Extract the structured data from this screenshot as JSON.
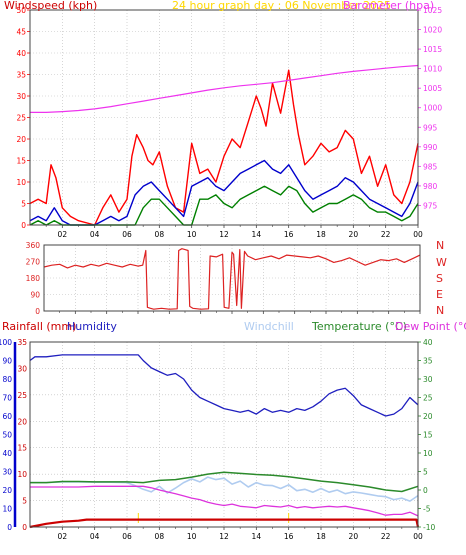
{
  "colors": {
    "wind": "#ff0000",
    "wind_avg": "#0000cc",
    "wind_min": "#008000",
    "baro": "#ee33ee",
    "title": "#ffd700",
    "direction": "#dd2222",
    "rain_label": "#cc0000",
    "rain": "#cc0000",
    "rain_axis": "#0000cc",
    "humidity": "#1f1fbf",
    "windchill": "#b0ccf0",
    "temperature": "#2b8a2b",
    "dew_point": "#dd33dd",
    "yellow_mark": "#ffd700",
    "grid": "#bbbbbb"
  },
  "chart_data": [
    {
      "type": "line",
      "title": "24 hour graph day : 06 November 2025",
      "ylabel": "Windspeed (kph)",
      "y2label": "Barometer (hpa)",
      "x_ticks": [
        "02",
        "04",
        "06",
        "08",
        "10",
        "12",
        "14",
        "16",
        "18",
        "20",
        "22",
        "00"
      ],
      "x_range": [
        0,
        24
      ],
      "ylim": [
        0,
        50
      ],
      "y_ticks": [
        0,
        5,
        10,
        15,
        20,
        25,
        30,
        35,
        40,
        45,
        50
      ],
      "y2lim": [
        970,
        1025
      ],
      "y2_ticks": [
        975,
        980,
        985,
        990,
        995,
        1000,
        1005,
        1010,
        1015,
        1020,
        1025
      ],
      "grid": true,
      "series": [
        {
          "key": "gust",
          "axis": "left",
          "x": [
            0,
            0.5,
            1,
            1.3,
            1.6,
            2,
            2.5,
            3,
            4,
            4.5,
            5,
            5.5,
            6,
            6.3,
            6.6,
            7,
            7.3,
            7.6,
            8,
            8.5,
            9,
            9.5,
            10,
            10.5,
            11,
            11.5,
            12,
            12.5,
            13,
            13.5,
            14,
            14.3,
            14.6,
            15,
            15.5,
            16,
            16.3,
            16.6,
            17,
            17.5,
            18,
            18.5,
            19,
            19.5,
            20,
            20.5,
            21,
            21.5,
            22,
            22.5,
            23,
            23.5,
            24
          ],
          "values": [
            5,
            6,
            5,
            14,
            11,
            4,
            2,
            1,
            0,
            4,
            7,
            3,
            6,
            16,
            21,
            18,
            15,
            14,
            17,
            9,
            4,
            3,
            19,
            12,
            13,
            10,
            16,
            20,
            18,
            24,
            30,
            27,
            23,
            33,
            26,
            36,
            28,
            21,
            14,
            16,
            19,
            17,
            18,
            22,
            20,
            12,
            16,
            9,
            14,
            7,
            5,
            10,
            19
          ]
        },
        {
          "key": "average",
          "axis": "left",
          "x": [
            0,
            0.5,
            1,
            1.5,
            2,
            2.5,
            3,
            4,
            4.5,
            5,
            5.5,
            6,
            6.5,
            7,
            7.5,
            8,
            8.5,
            9,
            9.5,
            10,
            10.5,
            11,
            11.5,
            12,
            12.5,
            13,
            13.5,
            14,
            14.5,
            15,
            15.5,
            16,
            16.5,
            17,
            17.5,
            18,
            18.5,
            19,
            19.5,
            20,
            20.5,
            21,
            21.5,
            22,
            22.5,
            23,
            23.5,
            24
          ],
          "values": [
            1,
            2,
            1,
            4,
            1,
            0,
            0,
            0,
            1,
            2,
            1,
            2,
            7,
            9,
            10,
            8,
            6,
            4,
            2,
            9,
            10,
            11,
            9,
            8,
            10,
            12,
            13,
            14,
            15,
            13,
            12,
            14,
            11,
            8,
            6,
            7,
            8,
            9,
            11,
            10,
            8,
            6,
            5,
            4,
            3,
            2,
            5,
            10
          ]
        },
        {
          "key": "minimum",
          "axis": "left",
          "x": [
            0,
            0.5,
            1,
            1.5,
            2,
            2.5,
            3,
            4,
            5,
            5.5,
            6,
            6.5,
            7,
            7.5,
            8,
            8.5,
            9,
            9.5,
            10,
            10.5,
            11,
            11.5,
            12,
            12.5,
            13,
            13.5,
            14,
            14.5,
            15,
            15.5,
            16,
            16.5,
            17,
            17.5,
            18,
            18.5,
            19,
            19.5,
            20,
            20.5,
            21,
            21.5,
            22,
            22.5,
            23,
            23.5,
            24
          ],
          "values": [
            0,
            1,
            0,
            1,
            0,
            0,
            0,
            0,
            0,
            0,
            0,
            0,
            4,
            6,
            6,
            4,
            2,
            0,
            0,
            6,
            6,
            7,
            5,
            4,
            6,
            7,
            8,
            9,
            8,
            7,
            9,
            8,
            5,
            3,
            4,
            5,
            5,
            6,
            7,
            6,
            4,
            3,
            3,
            2,
            1,
            2,
            5
          ]
        },
        {
          "key": "barometer",
          "axis": "right",
          "x": [
            0,
            1,
            2,
            3,
            4,
            5,
            6,
            7,
            8,
            9,
            10,
            11,
            12,
            13,
            14,
            15,
            16,
            17,
            18,
            19,
            20,
            21,
            22,
            23,
            24
          ],
          "values": [
            998.8,
            998.8,
            999,
            999.3,
            999.7,
            1000.3,
            1001,
            1001.7,
            1002.4,
            1003.1,
            1003.8,
            1004.5,
            1005.1,
            1005.6,
            1006,
            1006.4,
            1007,
            1007.6,
            1008.2,
            1008.8,
            1009.3,
            1009.7,
            1010.1,
            1010.5,
            1010.8
          ]
        }
      ]
    },
    {
      "type": "line",
      "direction_labels": [
        "N",
        "W",
        "S",
        "E",
        "N"
      ],
      "x_ticks": [
        "02",
        "04",
        "06",
        "08",
        "10",
        "12",
        "14",
        "16",
        "18",
        "20",
        "22",
        "00"
      ],
      "x_range": [
        0,
        24
      ],
      "ylim": [
        0,
        360
      ],
      "y_ticks": [
        0,
        90,
        180,
        270,
        360
      ],
      "grid": true,
      "series": [
        {
          "key": "wind_direction",
          "x": [
            0,
            0.5,
            1,
            1.5,
            2,
            2.5,
            3,
            3.5,
            4,
            4.5,
            5,
            5.5,
            6,
            6.3,
            6.5,
            6.6,
            6.8,
            7,
            7.5,
            8,
            8.5,
            8.6,
            8.8,
            9,
            9.2,
            9.3,
            9.5,
            10,
            10.5,
            10.6,
            11,
            11.4,
            11.5,
            11.8,
            12,
            12.1,
            12.3,
            12.5,
            12.6,
            12.8,
            13,
            13.5,
            14,
            14.5,
            15,
            15.5,
            16,
            16.5,
            17,
            17.5,
            18,
            18.5,
            19,
            19.5,
            20,
            20.5,
            21,
            21.5,
            22,
            22.5,
            23,
            23.5,
            24
          ],
          "values": [
            240,
            250,
            255,
            235,
            250,
            240,
            255,
            245,
            260,
            250,
            240,
            255,
            245,
            250,
            330,
            20,
            15,
            10,
            15,
            10,
            12,
            330,
            340,
            335,
            330,
            25,
            15,
            10,
            12,
            300,
            295,
            310,
            20,
            15,
            320,
            310,
            30,
            335,
            15,
            325,
            300,
            280,
            290,
            300,
            285,
            305,
            300,
            295,
            290,
            300,
            285,
            265,
            275,
            290,
            270,
            250,
            265,
            280,
            275,
            285,
            265,
            285,
            305
          ]
        }
      ]
    },
    {
      "type": "line",
      "labels": {
        "rainfall": "Rainfall (mm)",
        "humidity": "Humidity",
        "windchill": "Windchill",
        "temperature": "Temperature (°C)",
        "dew_point": "Dew Point (°C)"
      },
      "x_ticks": [
        "02",
        "04",
        "06",
        "08",
        "10",
        "12",
        "14",
        "16",
        "18",
        "20",
        "22",
        "00"
      ],
      "x_range": [
        0,
        24
      ],
      "humidity_lim": [
        0,
        100
      ],
      "humidity_ticks": [
        0,
        10,
        20,
        30,
        40,
        50,
        60,
        70,
        80,
        90,
        100
      ],
      "rain_lim": [
        0,
        35
      ],
      "rain_ticks": [
        0,
        5,
        10,
        15,
        20,
        25,
        30,
        35
      ],
      "temp_lim": [
        -10,
        40
      ],
      "temp_ticks": [
        -10,
        -5,
        0,
        5,
        10,
        15,
        20,
        25,
        30,
        35,
        40
      ],
      "grid": true,
      "series": [
        {
          "key": "humidity",
          "axis": "humidity",
          "x": [
            0,
            0.3,
            1,
            2,
            3,
            4,
            5,
            6,
            6.7,
            7,
            7.5,
            8,
            8.5,
            9,
            9.5,
            10,
            10.5,
            11,
            11.5,
            12,
            12.5,
            13,
            13.5,
            14,
            14.5,
            15,
            15.5,
            16,
            16.5,
            17,
            17.5,
            18,
            18.5,
            19,
            19.5,
            20,
            20.5,
            21,
            21.5,
            22,
            22.5,
            23,
            23.5,
            24
          ],
          "values": [
            90,
            92,
            92,
            93,
            93,
            93,
            93,
            93,
            93,
            90,
            86,
            84,
            82,
            83,
            80,
            74,
            70,
            68,
            66,
            64,
            63,
            62,
            63,
            61,
            64,
            62,
            63,
            62,
            64,
            63,
            65,
            68,
            72,
            74,
            75,
            71,
            66,
            64,
            62,
            60,
            61,
            64,
            70,
            66
          ]
        },
        {
          "key": "temperature",
          "axis": "temp",
          "x": [
            0,
            1,
            2,
            3,
            4,
            5,
            6,
            7,
            8,
            9,
            10,
            11,
            12,
            13,
            14,
            15,
            16,
            17,
            18,
            19,
            20,
            21,
            22,
            23,
            24
          ],
          "values": [
            2,
            2,
            2.3,
            2.3,
            2.2,
            2.2,
            2.2,
            2,
            2.6,
            2.8,
            3.5,
            4.3,
            4.8,
            4.5,
            4.2,
            4,
            3.6,
            3,
            2.4,
            2,
            1.4,
            0.8,
            0,
            -0.4,
            1
          ]
        },
        {
          "key": "windchill",
          "axis": "temp",
          "x": [
            0,
            1,
            2,
            3,
            4,
            5,
            6,
            6.5,
            7,
            7.5,
            8,
            8.5,
            9,
            9.5,
            10,
            10.5,
            11,
            11.5,
            12,
            12.5,
            13,
            13.5,
            14,
            14.5,
            15,
            15.5,
            16,
            16.5,
            17,
            17.5,
            18,
            18.5,
            19,
            19.5,
            20,
            20.5,
            21,
            21.5,
            22,
            22.5,
            23,
            23.5,
            24
          ],
          "values": [
            2,
            2,
            2.2,
            2.2,
            2.1,
            2.1,
            2,
            1.2,
            0.2,
            -0.5,
            1,
            -0.8,
            0.5,
            2,
            3,
            2.2,
            3.5,
            2.8,
            3.2,
            1.6,
            2.4,
            0.8,
            2,
            1.3,
            1.2,
            0.4,
            1.4,
            -0.2,
            0.2,
            -0.6,
            0.4,
            -0.6,
            0,
            -1,
            -0.5,
            -0.8,
            -1.2,
            -1.6,
            -1.8,
            -2.6,
            -2.2,
            -3,
            -1.5
          ]
        },
        {
          "key": "dew_point",
          "axis": "temp",
          "x": [
            0,
            1,
            2,
            3,
            4,
            5,
            6,
            7,
            7.5,
            8,
            8.5,
            9,
            9.5,
            10,
            10.5,
            11,
            11.5,
            12,
            12.5,
            13,
            13.5,
            14,
            14.5,
            15,
            15.5,
            16,
            16.5,
            17,
            17.5,
            18,
            18.5,
            19,
            19.5,
            20,
            20.5,
            21,
            21.5,
            22,
            22.5,
            23,
            23.5,
            24
          ],
          "values": [
            0.8,
            0.8,
            0.8,
            0.8,
            1,
            1,
            1,
            1,
            0.6,
            0,
            -0.5,
            -1,
            -1.6,
            -2.2,
            -2.6,
            -3.3,
            -3.8,
            -4.2,
            -3.8,
            -4.4,
            -4.6,
            -4.8,
            -4.2,
            -4.4,
            -4.6,
            -4.2,
            -4.8,
            -4.5,
            -4.8,
            -4.6,
            -4.4,
            -4.6,
            -4.4,
            -4.8,
            -5.2,
            -5.6,
            -6.2,
            -6.8,
            -6.6,
            -6.6,
            -6,
            -7
          ]
        },
        {
          "key": "rainfall",
          "axis": "rain",
          "x": [
            0,
            1,
            2,
            3,
            3.5,
            4,
            6.5,
            7,
            8,
            10,
            12,
            14,
            16,
            18,
            20,
            22,
            23.9,
            24
          ],
          "values": [
            0,
            0.6,
            1,
            1.2,
            1.4,
            1.4,
            1.4,
            1.4,
            1.4,
            1.4,
            1.4,
            1.4,
            1.4,
            1.4,
            1.4,
            1.4,
            1.4,
            0
          ]
        }
      ],
      "markers_x": [
        6.7,
        16
      ]
    }
  ]
}
